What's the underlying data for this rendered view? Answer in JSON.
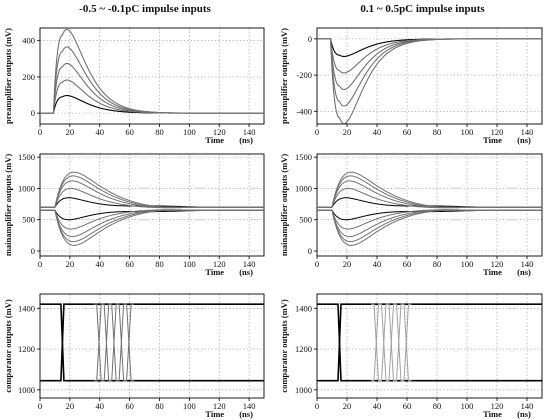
{
  "columns": [
    {
      "title": "-0.5 ~ -0.1pC impulse inputs"
    },
    {
      "title": "0.1 ~ 0.5pC impulse inputs"
    }
  ],
  "chart_data": [
    {
      "type": "line",
      "panel": "left-top",
      "ylabel": "preamplifier outputs (mV)",
      "xlabel": "Time",
      "xunit": "(ns)",
      "xlim": [
        0,
        150
      ],
      "ylim": [
        -60,
        470
      ],
      "xticks": [
        0,
        20,
        40,
        60,
        80,
        100,
        120,
        140
      ],
      "yticks": [
        0,
        200,
        400
      ],
      "grid": true,
      "series": [
        {
          "peak_x": 15,
          "peak_y": 90,
          "baseline": 0,
          "color": "#000000"
        },
        {
          "peak_x": 15,
          "peak_y": 170,
          "baseline": 0,
          "color": "#707070"
        },
        {
          "peak_x": 15,
          "peak_y": 255,
          "baseline": 0,
          "color": "#707070"
        },
        {
          "peak_x": 15,
          "peak_y": 340,
          "baseline": 0,
          "color": "#707070"
        },
        {
          "peak_x": 15,
          "peak_y": 430,
          "baseline": 0,
          "color": "#707070"
        }
      ]
    },
    {
      "type": "line",
      "panel": "right-top",
      "ylabel": "preamplifier outputs (mV)",
      "xlabel": "Time",
      "xunit": "(ns)",
      "xlim": [
        0,
        150
      ],
      "ylim": [
        -470,
        60
      ],
      "xticks": [
        0,
        20,
        40,
        60,
        80,
        100,
        120,
        140
      ],
      "yticks": [
        0,
        -200,
        -400
      ],
      "grid": true,
      "series": [
        {
          "peak_x": 15,
          "peak_y": -90,
          "baseline": 0,
          "color": "#000000"
        },
        {
          "peak_x": 15,
          "peak_y": -175,
          "baseline": 0,
          "color": "#707070"
        },
        {
          "peak_x": 15,
          "peak_y": -260,
          "baseline": 0,
          "color": "#707070"
        },
        {
          "peak_x": 15,
          "peak_y": -345,
          "baseline": 0,
          "color": "#707070"
        },
        {
          "peak_x": 15,
          "peak_y": -435,
          "baseline": 0,
          "color": "#707070"
        }
      ]
    },
    {
      "type": "line",
      "panel": "left-mid",
      "ylabel": "mainamplifier outputs (mV)",
      "xlabel": "Time",
      "xunit": "(ns)",
      "xlim": [
        0,
        150
      ],
      "ylim": [
        -80,
        1550
      ],
      "xticks": [
        0,
        20,
        40,
        60,
        80,
        100,
        120,
        140
      ],
      "yticks": [
        0,
        500,
        1000,
        1500
      ],
      "grid": true,
      "series": [
        {
          "baseline": 700,
          "amplitude": 150,
          "color": "#000000"
        },
        {
          "baseline": 700,
          "amplitude": 300,
          "color": "#707070"
        },
        {
          "baseline": 700,
          "amplitude": 420,
          "color": "#707070"
        },
        {
          "baseline": 700,
          "amplitude": 500,
          "color": "#707070"
        },
        {
          "baseline": 700,
          "amplitude": 560,
          "color": "#707070"
        },
        {
          "baseline": 650,
          "amplitude": -150,
          "color": "#000000"
        },
        {
          "baseline": 650,
          "amplitude": -300,
          "color": "#707070"
        },
        {
          "baseline": 650,
          "amplitude": -420,
          "color": "#707070"
        },
        {
          "baseline": 650,
          "amplitude": -500,
          "color": "#707070"
        },
        {
          "baseline": 650,
          "amplitude": -560,
          "color": "#707070"
        }
      ]
    },
    {
      "type": "line",
      "panel": "right-mid",
      "ylabel": "mainamplifier outputs (mV)",
      "xlabel": "Time",
      "xunit": "(ns)",
      "xlim": [
        0,
        150
      ],
      "ylim": [
        -80,
        1550
      ],
      "xticks": [
        0,
        20,
        40,
        60,
        80,
        100,
        120,
        140
      ],
      "yticks": [
        0,
        500,
        1000,
        1500
      ],
      "grid": true,
      "series": [
        {
          "baseline": 700,
          "amplitude": 150,
          "color": "#000000"
        },
        {
          "baseline": 700,
          "amplitude": 300,
          "color": "#707070"
        },
        {
          "baseline": 700,
          "amplitude": 420,
          "color": "#707070"
        },
        {
          "baseline": 700,
          "amplitude": 500,
          "color": "#707070"
        },
        {
          "baseline": 700,
          "amplitude": 560,
          "color": "#707070"
        },
        {
          "baseline": 650,
          "amplitude": -150,
          "color": "#000000"
        },
        {
          "baseline": 650,
          "amplitude": -300,
          "color": "#707070"
        },
        {
          "baseline": 650,
          "amplitude": -420,
          "color": "#707070"
        },
        {
          "baseline": 650,
          "amplitude": -500,
          "color": "#707070"
        },
        {
          "baseline": 650,
          "amplitude": -560,
          "color": "#707070"
        }
      ]
    },
    {
      "type": "line",
      "panel": "left-bottom",
      "ylabel": "comparator outputs (mV)",
      "xlabel": "Time",
      "xunit": "(ns)",
      "xlim": [
        0,
        150
      ],
      "ylim": [
        960,
        1470
      ],
      "xticks": [
        0,
        20,
        40,
        60,
        80,
        100,
        120,
        140
      ],
      "yticks": [
        1000,
        1200,
        1400
      ],
      "grid": true,
      "high_level": 1420,
      "low_level": 1045,
      "fall_time": 15,
      "rise_times": [
        38,
        43,
        48,
        53,
        58
      ],
      "colors": [
        "#000000",
        "#707070"
      ]
    },
    {
      "type": "line",
      "panel": "right-bottom",
      "ylabel": "comparator outputs (mV)",
      "xlabel": "Time",
      "xunit": "(ns)",
      "xlim": [
        0,
        150
      ],
      "ylim": [
        960,
        1470
      ],
      "xticks": [
        0,
        20,
        40,
        60,
        80,
        100,
        120,
        140
      ],
      "yticks": [
        1000,
        1200,
        1400
      ],
      "grid": true,
      "high_level": 1420,
      "low_level": 1045,
      "fall_time": 15,
      "rise_times": [
        38,
        43,
        48,
        53,
        58
      ],
      "colors": [
        "#000000",
        "#a0a0a0"
      ]
    }
  ]
}
